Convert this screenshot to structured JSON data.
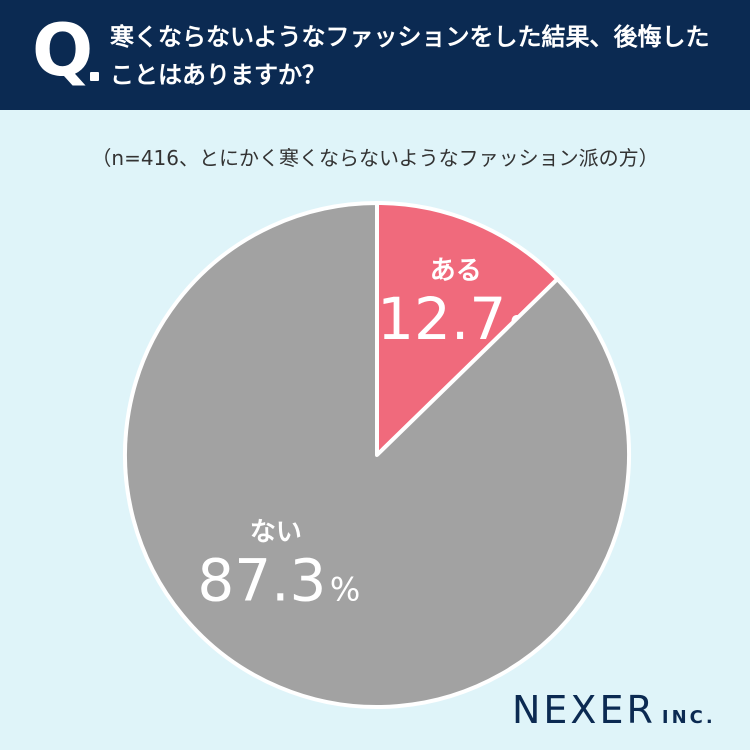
{
  "header": {
    "q_label": "Q",
    "question": "寒くならないようなファッションをした結果、後悔したことはありますか？"
  },
  "note": "（n=416、とにかく寒くならないようなファッション派の方）",
  "logo": {
    "name": "NEXER",
    "suffix": "INC."
  },
  "colors": {
    "header_bg": "#0b2a52",
    "background": "#dff4f9",
    "slice_yes": "#f06a7c",
    "slice_no": "#a2a2a2"
  },
  "chart_data": {
    "type": "pie",
    "slices": [
      {
        "label": "ある",
        "value": 12.7,
        "display": "12.7",
        "unit": "%",
        "color": "#f06a7c"
      },
      {
        "label": "ない",
        "value": 87.3,
        "display": "87.3",
        "unit": "%",
        "color": "#a2a2a2"
      }
    ],
    "start": "12 o'clock",
    "direction": "clockwise",
    "legend": "none"
  }
}
